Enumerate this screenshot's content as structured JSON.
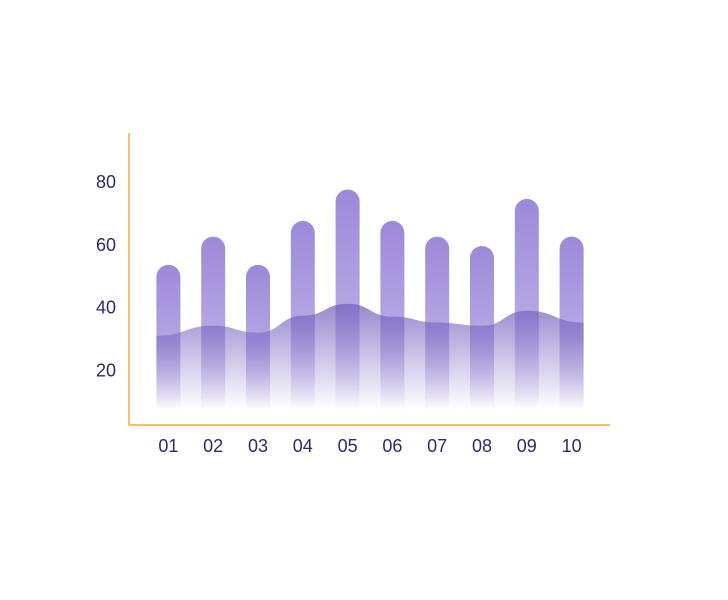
{
  "chart_data": {
    "type": "bar-area",
    "categories": [
      "01",
      "02",
      "03",
      "04",
      "05",
      "06",
      "07",
      "08",
      "09",
      "10"
    ],
    "series": [
      {
        "type": "bar",
        "color": "#9c89da",
        "values": [
          54,
          63,
          54,
          68,
          78,
          68,
          63,
          60,
          75,
          63
        ]
      },
      {
        "type": "area",
        "color": "#7563be",
        "values": [
          31.4,
          34.6,
          32.4,
          37.8,
          41.6,
          37.5,
          35.6,
          34.6,
          39.4,
          35.6
        ]
      }
    ],
    "ylim": [
      3,
      96
    ],
    "yticks": [
      20,
      40,
      60,
      80
    ],
    "grid": false,
    "axis_color": "#f2a93b"
  }
}
